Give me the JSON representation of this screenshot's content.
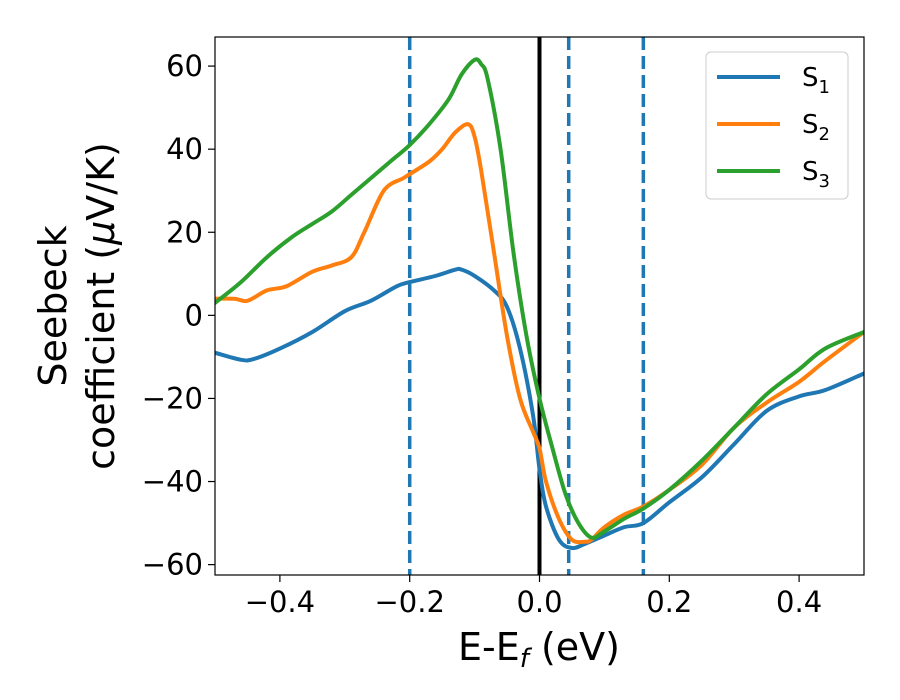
{
  "chart_data": {
    "type": "line",
    "title": "",
    "xlabel": {
      "base": "E-E",
      "sub": "f",
      "suffix": " (eV)"
    },
    "ylabel": {
      "line1": "Seebeck",
      "line2_prefix": "coefficient  (",
      "line2_mu": "μ",
      "line2_suffix": "V/K)"
    },
    "xlim": [
      -0.5,
      0.5
    ],
    "ylim": [
      -62.5,
      67
    ],
    "xticks": [
      -0.4,
      -0.2,
      0.0,
      0.2,
      0.4
    ],
    "xtick_labels": [
      "−0.4",
      "−0.2",
      "0.0",
      "0.2",
      "0.4"
    ],
    "yticks": [
      -60,
      -40,
      -20,
      0,
      20,
      40,
      60
    ],
    "ytick_labels": [
      "−60",
      "−40",
      "−20",
      "0",
      "20",
      "40",
      "60"
    ],
    "legend_position": "top-right",
    "vlines": [
      {
        "x": 0.0,
        "style": "solid",
        "color": "#000000"
      },
      {
        "x": -0.2,
        "style": "dashed",
        "color": "#1f77b4"
      },
      {
        "x": 0.045,
        "style": "dashed",
        "color": "#1f77b4"
      },
      {
        "x": 0.16,
        "style": "dashed",
        "color": "#1f77b4"
      }
    ],
    "series": [
      {
        "name": "S1",
        "label_base": "S",
        "label_sub": "1",
        "color": "#1f77b4",
        "x": [
          -0.5,
          -0.46,
          -0.44,
          -0.4,
          -0.35,
          -0.3,
          -0.26,
          -0.22,
          -0.2,
          -0.16,
          -0.13,
          -0.12,
          -0.1,
          -0.07,
          -0.05,
          -0.03,
          -0.01,
          0.0,
          0.01,
          0.03,
          0.05,
          0.07,
          0.1,
          0.13,
          0.16,
          0.2,
          0.25,
          0.3,
          0.35,
          0.4,
          0.44,
          0.5
        ],
        "y": [
          -9,
          -10.7,
          -10.5,
          -8,
          -4,
          1,
          3.5,
          7,
          8,
          9.5,
          11,
          11,
          9.5,
          6,
          2,
          -8,
          -24,
          -37,
          -46,
          -54,
          -56,
          -55,
          -53,
          -51,
          -50,
          -45,
          -39,
          -31,
          -23,
          -19.5,
          -18,
          -14
        ]
      },
      {
        "name": "S2",
        "label_base": "S",
        "label_sub": "2",
        "color": "#ff7f0e",
        "x": [
          -0.5,
          -0.47,
          -0.45,
          -0.42,
          -0.39,
          -0.35,
          -0.32,
          -0.29,
          -0.27,
          -0.24,
          -0.21,
          -0.2,
          -0.17,
          -0.15,
          -0.13,
          -0.11,
          -0.1,
          -0.09,
          -0.07,
          -0.05,
          -0.03,
          -0.01,
          0.0,
          0.01,
          0.03,
          0.05,
          0.07,
          0.08,
          0.1,
          0.13,
          0.16,
          0.2,
          0.25,
          0.3,
          0.35,
          0.4,
          0.44,
          0.5
        ],
        "y": [
          4,
          4,
          3.5,
          6,
          7,
          10.5,
          12,
          14,
          20,
          30,
          33,
          34,
          37,
          40,
          44,
          46,
          43,
          35,
          15,
          -5,
          -20,
          -28,
          -32,
          -40,
          -49,
          -54,
          -54.5,
          -54,
          -51,
          -48,
          -46,
          -42,
          -36,
          -27,
          -21,
          -16,
          -11,
          -4
        ]
      },
      {
        "name": "S3",
        "label_base": "S",
        "label_sub": "3",
        "color": "#2ca02c",
        "x": [
          -0.5,
          -0.46,
          -0.42,
          -0.38,
          -0.35,
          -0.32,
          -0.29,
          -0.26,
          -0.23,
          -0.2,
          -0.17,
          -0.14,
          -0.12,
          -0.1,
          -0.09,
          -0.08,
          -0.06,
          -0.04,
          -0.02,
          0.0,
          0.02,
          0.04,
          0.06,
          0.08,
          0.1,
          0.13,
          0.16,
          0.2,
          0.25,
          0.3,
          0.35,
          0.4,
          0.44,
          0.5
        ],
        "y": [
          3,
          8,
          14,
          19,
          22,
          25,
          29,
          33,
          37,
          41,
          46,
          52,
          58,
          61.5,
          60.5,
          57,
          40,
          15,
          -5,
          -20,
          -32,
          -43,
          -50,
          -53.5,
          -52,
          -49,
          -46.5,
          -42,
          -35,
          -27,
          -19,
          -13,
          -8,
          -4
        ]
      }
    ]
  }
}
